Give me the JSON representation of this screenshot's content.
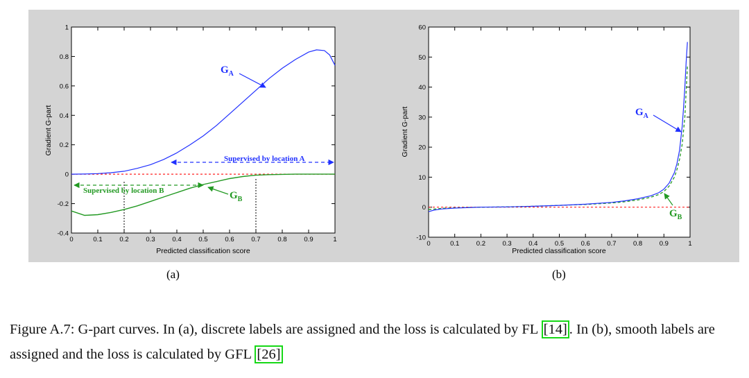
{
  "panels": [
    {
      "label": "(a)"
    },
    {
      "label": "(b)"
    }
  ],
  "caption": {
    "text_1": "Figure A.7: G-part curves. In (a), discrete labels are assigned and the loss is calculated by FL ",
    "ref_1": "[14]",
    "text_2": ". In (b), smooth labels are assigned and the loss is calculated by GFL ",
    "ref_2": "[26]"
  },
  "colors": {
    "blue": "#2030ff",
    "green": "#229922",
    "red_dashed": "#ff2020",
    "panel_bg": "#d4d4d4",
    "citation_box": "#16d816"
  },
  "chart_data": [
    {
      "type": "line",
      "xlabel": "Predicted classification score",
      "ylabel": "Gradient G-part",
      "xlim": [
        0,
        1
      ],
      "ylim": [
        -0.4,
        1
      ],
      "xticks": [
        "0",
        "0.1",
        "0.2",
        "0.3",
        "0.4",
        "0.5",
        "0.6",
        "0.7",
        "0.8",
        "0.9",
        "1"
      ],
      "yticks": [
        "-0.4",
        "-0.2",
        "0",
        "0.2",
        "0.4",
        "0.6",
        "0.8",
        "1"
      ],
      "annotations": [
        {
          "main": "G",
          "sub": "A"
        },
        {
          "main": "G",
          "sub": "B"
        },
        {
          "text": "Supervised by location A"
        },
        {
          "text": "Supervised by location B"
        }
      ],
      "series": [
        {
          "x": [
            0,
            0.05,
            0.1,
            0.15,
            0.2,
            0.25,
            0.3,
            0.35,
            0.4,
            0.45,
            0.5,
            0.55,
            0.6,
            0.65,
            0.7,
            0.75,
            0.8,
            0.85,
            0.9,
            0.93,
            0.96,
            0.98,
            1.0
          ],
          "y": [
            0,
            0.001,
            0.004,
            0.01,
            0.02,
            0.04,
            0.065,
            0.1,
            0.145,
            0.2,
            0.26,
            0.33,
            0.41,
            0.49,
            0.57,
            0.65,
            0.72,
            0.78,
            0.83,
            0.845,
            0.84,
            0.81,
            0.74
          ]
        },
        {
          "x": [
            0,
            0.05,
            0.1,
            0.15,
            0.2,
            0.25,
            0.3,
            0.35,
            0.4,
            0.45,
            0.5,
            0.55,
            0.6,
            0.65,
            0.7,
            0.75,
            0.8,
            0.85,
            0.9,
            1.0
          ],
          "y": [
            -0.25,
            -0.28,
            -0.275,
            -0.26,
            -0.24,
            -0.215,
            -0.185,
            -0.155,
            -0.125,
            -0.095,
            -0.07,
            -0.05,
            -0.03,
            -0.016,
            -0.007,
            -0.003,
            -0.001,
            0,
            0,
            0
          ]
        },
        {
          "x": [
            0,
            1
          ],
          "y": [
            0,
            0
          ]
        }
      ]
    },
    {
      "type": "line",
      "xlabel": "Predicted classification score",
      "ylabel": "Gradient G-part",
      "xlim": [
        0,
        1
      ],
      "ylim": [
        -10,
        60
      ],
      "xticks": [
        "0",
        "0.1",
        "0.2",
        "0.3",
        "0.4",
        "0.5",
        "0.6",
        "0.7",
        "0.8",
        "0.9",
        "1"
      ],
      "yticks": [
        "-10",
        "0",
        "10",
        "20",
        "30",
        "40",
        "50",
        "60"
      ],
      "annotations": [
        {
          "main": "G",
          "sub": "A"
        },
        {
          "main": "G",
          "sub": "B"
        }
      ],
      "series": [
        {
          "x": [
            0,
            0.02,
            0.05,
            0.1,
            0.2,
            0.3,
            0.4,
            0.5,
            0.6,
            0.7,
            0.75,
            0.8,
            0.85,
            0.88,
            0.9,
            0.92,
            0.94,
            0.95,
            0.96,
            0.97,
            0.975,
            0.98,
            0.985,
            0.99
          ],
          "y": [
            -1.5,
            -1.0,
            -0.6,
            -0.3,
            0,
            0.1,
            0.3,
            0.6,
            1.0,
            1.6,
            2.1,
            2.8,
            3.8,
            4.8,
            6.0,
            8.0,
            11.5,
            14.5,
            19,
            27,
            33,
            40,
            48,
            55
          ]
        },
        {
          "x": [
            0,
            0.05,
            0.1,
            0.2,
            0.3,
            0.4,
            0.5,
            0.6,
            0.7,
            0.75,
            0.8,
            0.85,
            0.88,
            0.9,
            0.92,
            0.94,
            0.95,
            0.96,
            0.97,
            0.98,
            0.99
          ],
          "y": [
            -0.8,
            -0.4,
            -0.2,
            0,
            0.1,
            0.3,
            0.6,
            0.9,
            1.4,
            1.8,
            2.4,
            3.3,
            4.2,
            5.2,
            7.0,
            10,
            12.5,
            16,
            21,
            30,
            47
          ]
        },
        {
          "x": [
            0,
            1
          ],
          "y": [
            0,
            0
          ]
        }
      ]
    }
  ]
}
